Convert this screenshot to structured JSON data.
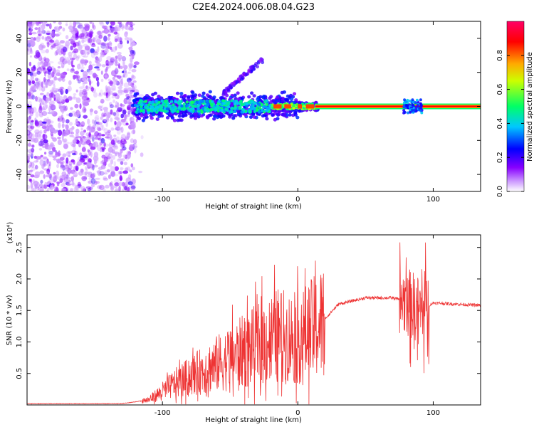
{
  "title": "C2E4.2024.006.08.04.G23",
  "chart_data": [
    {
      "type": "heatmap",
      "xlabel": "Height of straight line (km)",
      "ylabel": "Frequency (Hz)",
      "xlim": [
        -200,
        135
      ],
      "ylim": [
        -50,
        50
      ],
      "x_ticks": [
        -100,
        0,
        100
      ],
      "y_ticks": [
        -40,
        -20,
        0,
        20,
        40
      ],
      "colorbar": {
        "label": "Normalized spectral amplitude",
        "range": [
          0.0,
          1.0
        ],
        "ticks": [
          0.0,
          0.2,
          0.4,
          0.6,
          0.8
        ],
        "colors": [
          "#ffffff",
          "#8800ff",
          "#0000ff",
          "#00c8ff",
          "#00ff66",
          "#ffff00",
          "#ff8800",
          "#ff0000",
          "#ff0066"
        ]
      },
      "features": [
        {
          "name": "noise",
          "x_range": [
            -200,
            -120
          ],
          "y_range": [
            -50,
            50
          ],
          "amplitude": 0.15
        },
        {
          "name": "main_signal",
          "x_range": [
            -120,
            135
          ],
          "frequency_hz": 0,
          "amplitude_end": 1.0
        },
        {
          "name": "secondary_branch",
          "x_range": [
            -55,
            -25
          ],
          "frequency_hz": [
            8,
            30
          ]
        }
      ]
    },
    {
      "type": "line",
      "xlabel": "Height of straight line (km)",
      "ylabel": "SNR (10 * v/v)",
      "y_multiplier": "(x10⁴)",
      "xlim": [
        -200,
        135
      ],
      "ylim": [
        0,
        2.7
      ],
      "x_ticks": [
        -100,
        0,
        100
      ],
      "y_ticks": [
        0.5,
        1.0,
        1.5,
        2.0,
        2.5
      ],
      "y_tick_labels": [
        "0.5",
        "1.0",
        "1.5",
        "2.0",
        "2.5"
      ],
      "color": "#ee3333",
      "envelope": [
        {
          "x": -200,
          "y": 0.02
        },
        {
          "x": -130,
          "y": 0.02
        },
        {
          "x": -110,
          "y": 0.08
        },
        {
          "x": -90,
          "y": 0.35
        },
        {
          "x": -70,
          "y": 0.55
        },
        {
          "x": -50,
          "y": 0.75
        },
        {
          "x": -30,
          "y": 0.95
        },
        {
          "x": -15,
          "y": 1.1
        },
        {
          "x": 0,
          "y": 1.05
        },
        {
          "x": 15,
          "y": 1.25
        },
        {
          "x": 30,
          "y": 1.6
        },
        {
          "x": 50,
          "y": 1.7
        },
        {
          "x": 70,
          "y": 1.7
        },
        {
          "x": 80,
          "y": 1.65
        },
        {
          "x": 90,
          "y": 1.5
        },
        {
          "x": 100,
          "y": 1.62
        },
        {
          "x": 135,
          "y": 1.58
        }
      ]
    }
  ]
}
